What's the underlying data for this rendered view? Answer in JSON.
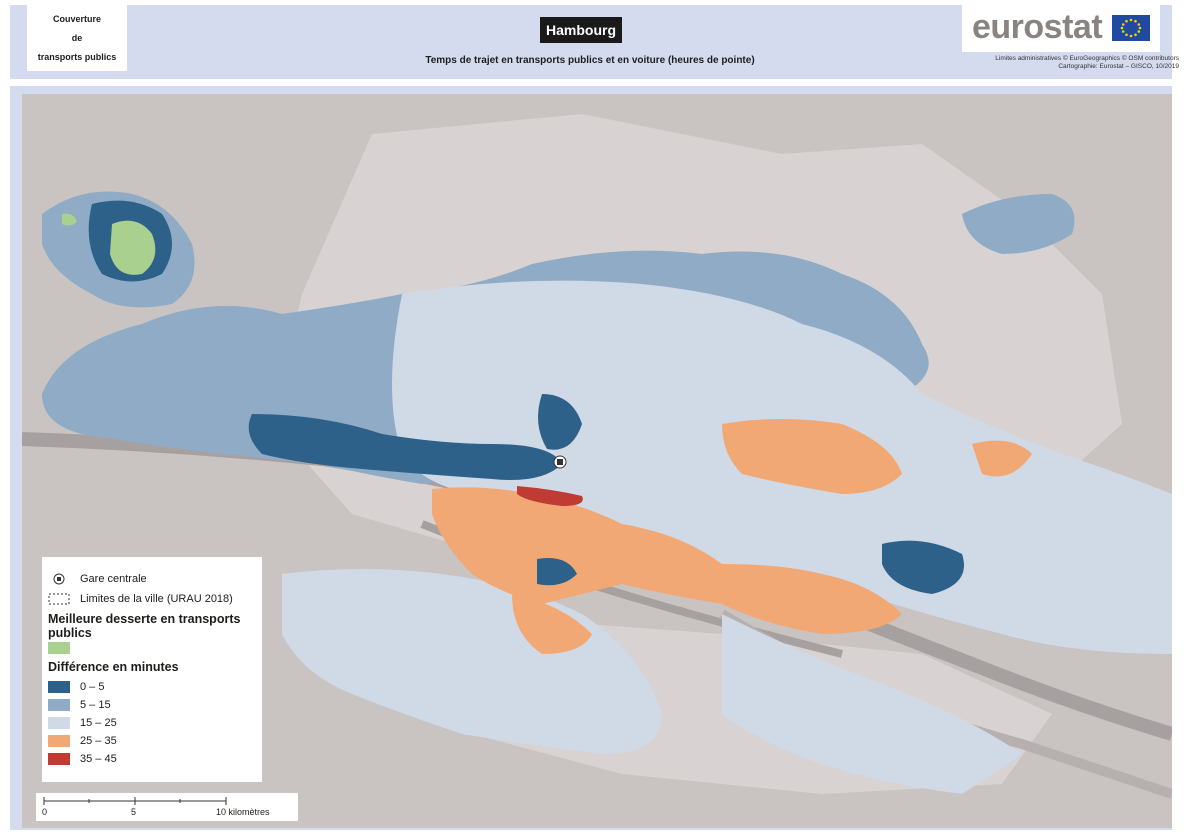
{
  "header": {
    "theme_lines": [
      "Couverture",
      "de",
      "transports publics"
    ],
    "city": "Hambourg",
    "subtitle": "Temps de trajet en transports publics et en voiture (heures de pointe)",
    "logo_text": "eurostat",
    "credits_line1": "Limites administratives © EuroGeographics © OSM contributors",
    "credits_line2": "Cartographie: Eurostat – GISCO, 10/2019"
  },
  "legend": {
    "station_label": "Gare centrale",
    "boundary_label": "Limites de la ville (URAU 2018)",
    "best_heading": "Meilleure desserte en transports publics",
    "diff_heading": "Différence en minutes",
    "classes": [
      {
        "label": "0 – 5",
        "color": "#2e6189"
      },
      {
        "label": "5 – 15",
        "color": "#8fabc6"
      },
      {
        "label": "15 – 25",
        "color": "#d0d9e6"
      },
      {
        "label": "25 – 35",
        "color": "#f2a874"
      },
      {
        "label": "35 – 45",
        "color": "#c03b34"
      }
    ],
    "best_color": "#a9d08e"
  },
  "scale": {
    "ticks": [
      "0",
      "5",
      "10 kilomètres"
    ]
  },
  "map": {
    "background_color": "#c9c3c1",
    "river_color": "#a7a0a0",
    "city_boundary_color": "#ffffff"
  }
}
